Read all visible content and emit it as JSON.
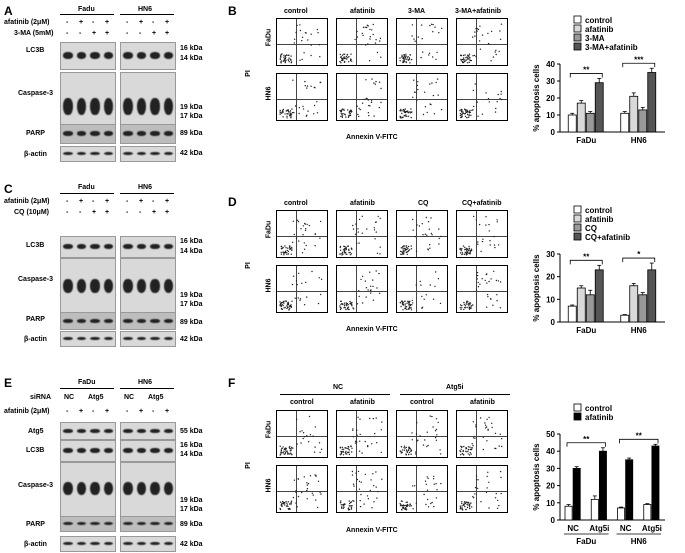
{
  "panels": {
    "A": {
      "letter": "A",
      "cells": [
        "Fadu",
        "HN6"
      ],
      "row_labels": [
        "afatinib (2μM)",
        "3-MA (5mM)"
      ],
      "row1_signs": [
        "-",
        "+",
        "-",
        "+",
        "-",
        "+",
        "-",
        "+"
      ],
      "row2_signs": [
        "-",
        "-",
        "+",
        "+",
        "-",
        "-",
        "+",
        "+"
      ],
      "blots": [
        "LC3B",
        "Caspase-3",
        "PARP",
        "β-actin"
      ],
      "kda": [
        "16 kDa",
        "14 kDa",
        "19 kDa",
        "17 kDa",
        "89 kDa",
        "42 kDa"
      ]
    },
    "B": {
      "letter": "B",
      "conditions": [
        "control",
        "afatinib",
        "3-MA",
        "3-MA+afatinib"
      ],
      "rows": [
        "FaDu",
        "HN6"
      ],
      "yaxis": "PI",
      "xaxis": "Annexin V-FITC"
    },
    "C": {
      "letter": "C",
      "cells": [
        "Fadu",
        "HN6"
      ],
      "row_labels": [
        "afatinib (2μM)",
        "CQ (10μM)"
      ],
      "row1_signs": [
        "-",
        "+",
        "-",
        "+",
        "-",
        "+",
        "-",
        "+"
      ],
      "row2_signs": [
        "-",
        "-",
        "+",
        "+",
        "-",
        "-",
        "+",
        "+"
      ],
      "blots": [
        "LC3B",
        "Caspase-3",
        "PARP",
        "β-actin"
      ],
      "kda": [
        "16 kDa",
        "14 kDa",
        "19 kDa",
        "17 kDa",
        "89 kDa",
        "42 kDa"
      ]
    },
    "D": {
      "letter": "D",
      "conditions": [
        "control",
        "afatinib",
        "CQ",
        "CQ+afatinib"
      ],
      "rows": [
        "FaDu",
        "HN6"
      ],
      "yaxis": "PI",
      "xaxis": "Annexin V-FITC"
    },
    "E": {
      "letter": "E",
      "cells": [
        "FaDu",
        "HN6"
      ],
      "sirna_label": "siRNA",
      "sirna": [
        "NC",
        "Atg5",
        "NC",
        "Atg5"
      ],
      "row_labels": [
        "afatinib (2μM)"
      ],
      "row1_signs": [
        "-",
        "+",
        "-",
        "+",
        "-",
        "+",
        "-",
        "+"
      ],
      "blots": [
        "Atg5",
        "LC3B",
        "Caspase-3",
        "PARP",
        "β-actin"
      ],
      "kda": [
        "55 kDa",
        "16 kDa",
        "14 kDa",
        "19 kDa",
        "17 kDa",
        "89 kDa",
        "42 kDa"
      ]
    },
    "F": {
      "letter": "F",
      "groups": [
        "NC",
        "Atg5i"
      ],
      "conditions": [
        "control",
        "afatinib",
        "control",
        "afatinib"
      ],
      "rows": [
        "FaDu",
        "HN6"
      ],
      "yaxis": "PI",
      "xaxis": "Annexin V-FITC"
    }
  },
  "chart_data": [
    {
      "type": "bar",
      "categories": [
        "FaDu",
        "HN6"
      ],
      "series": [
        {
          "name": "control",
          "values": [
            10,
            11
          ],
          "color": "#ffffff"
        },
        {
          "name": "afatinib",
          "values": [
            17,
            21
          ],
          "color": "#d9d9d9"
        },
        {
          "name": "3-MA",
          "values": [
            11,
            13
          ],
          "color": "#999999"
        },
        {
          "name": "3-MA+afatinib",
          "values": [
            29,
            35
          ],
          "color": "#555555"
        }
      ],
      "errors": [
        [
          1,
          1
        ],
        [
          1.5,
          2
        ],
        [
          1,
          1.5
        ],
        [
          2.5,
          2.5
        ]
      ],
      "ylabel": "% apoptosis cells",
      "ylim": [
        0,
        40
      ],
      "yticks": [
        0,
        10,
        20,
        30,
        40
      ],
      "significance": [
        "**",
        "***"
      ]
    },
    {
      "type": "bar",
      "categories": [
        "FaDu",
        "HN6"
      ],
      "series": [
        {
          "name": "control",
          "values": [
            7,
            3
          ],
          "color": "#ffffff"
        },
        {
          "name": "afatinib",
          "values": [
            15,
            16
          ],
          "color": "#d9d9d9"
        },
        {
          "name": "CQ",
          "values": [
            12,
            12
          ],
          "color": "#999999"
        },
        {
          "name": "CQ+afatinib",
          "values": [
            23,
            23
          ],
          "color": "#555555"
        }
      ],
      "errors": [
        [
          0.5,
          0.3
        ],
        [
          1,
          1
        ],
        [
          2,
          1
        ],
        [
          2,
          3
        ]
      ],
      "ylabel": "% apoptosis cells",
      "ylim": [
        0,
        30
      ],
      "yticks": [
        0,
        10,
        20,
        30
      ],
      "significance": [
        "**",
        "*"
      ]
    },
    {
      "type": "bar",
      "categories": [
        "NC",
        "Atg5i",
        "NC",
        "Atg5i"
      ],
      "group_labels": [
        "FaDu",
        "HN6"
      ],
      "series": [
        {
          "name": "control",
          "values": [
            8,
            12,
            7,
            9
          ],
          "color": "#ffffff"
        },
        {
          "name": "afatinib",
          "values": [
            30,
            40,
            35,
            43
          ],
          "color": "#000000"
        }
      ],
      "errors": [
        [
          1,
          2,
          0.5,
          0.5
        ],
        [
          1,
          2,
          1,
          1
        ]
      ],
      "ylabel": "% apoptosis cells",
      "ylim": [
        0,
        50
      ],
      "yticks": [
        0,
        10,
        20,
        30,
        40,
        50
      ],
      "significance": [
        "**",
        "**"
      ]
    }
  ]
}
